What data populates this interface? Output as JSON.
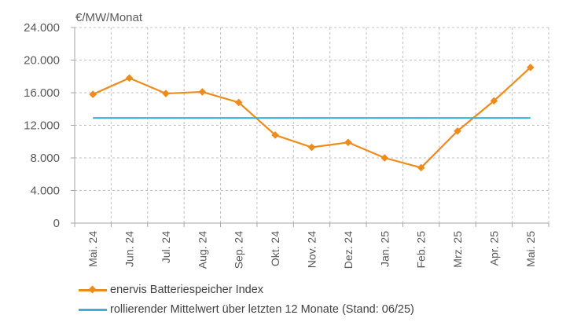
{
  "chart_data": {
    "type": "line",
    "ylabel": "€/MW/Monat",
    "ylim": [
      0,
      24000
    ],
    "ytick_labels": [
      "0",
      "4.000",
      "8.000",
      "12.000",
      "16.000",
      "20.000",
      "24.000"
    ],
    "grid": true,
    "categories": [
      "Mai. 24",
      "Jun. 24",
      "Jul. 24",
      "Aug. 24",
      "Sep. 24",
      "Okt. 24",
      "Nov. 24",
      "Dez. 24",
      "Jan. 25",
      "Feb. 25",
      "Mrz. 25",
      "Apr. 25",
      "Mai. 25"
    ],
    "series": [
      {
        "name": "enervis Batteriespeicher Index",
        "color": "#ED8B1B",
        "marker": "diamond",
        "values": [
          15800,
          17800,
          15900,
          16100,
          14800,
          10800,
          9300,
          9900,
          8000,
          6800,
          11300,
          15000,
          19100
        ]
      },
      {
        "name": "rollierender Mittelwert über letzten 12 Monate (Stand: 06/25)",
        "color": "#3BAFD8",
        "marker": "none",
        "values": [
          12900,
          12900,
          12900,
          12900,
          12900,
          12900,
          12900,
          12900,
          12900,
          12900,
          12900,
          12900,
          12900
        ]
      }
    ],
    "legend_position": "bottom-left"
  }
}
